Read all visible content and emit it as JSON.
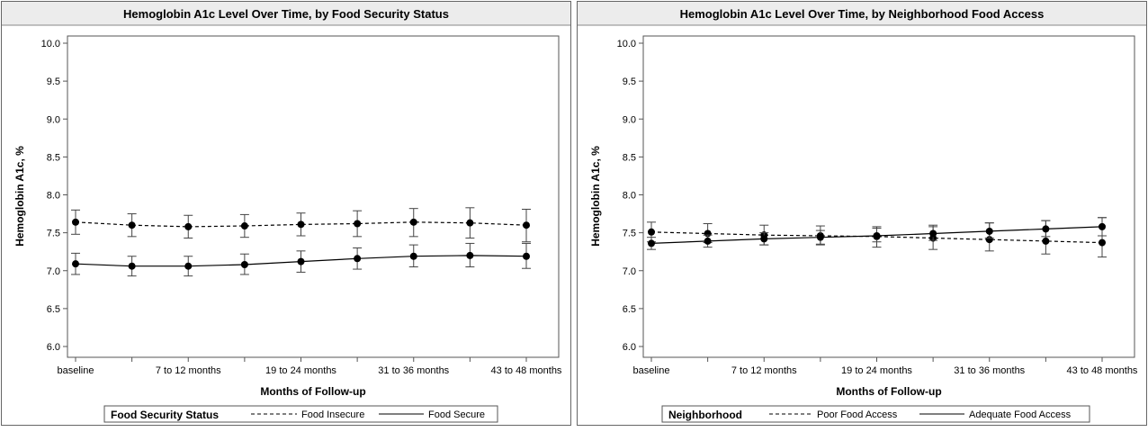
{
  "chart_data": [
    {
      "type": "line",
      "title": "Hemoglobin A1c Level Over Time, by Food Security Status",
      "xlabel": "Months of Follow-up",
      "ylabel": "Hemoglobin A1c, %",
      "ylim": [
        6.0,
        10.0
      ],
      "yticks": [
        "6.0",
        "6.5",
        "7.0",
        "7.5",
        "8.0",
        "8.5",
        "9.0",
        "9.5",
        "10.0"
      ],
      "xtick_labels": [
        "baseline",
        "7 to 12 months",
        "19 to 24 months",
        "31 to 36 months",
        "43 to 48 months"
      ],
      "legend_title": "Food Security Status",
      "series": [
        {
          "name": "Food Insecure",
          "style": "dashed",
          "values": [
            7.64,
            7.6,
            7.58,
            7.59,
            7.61,
            7.62,
            7.64,
            7.63,
            7.6
          ],
          "lower": [
            7.48,
            7.45,
            7.43,
            7.44,
            7.46,
            7.45,
            7.45,
            7.43,
            7.38
          ],
          "upper": [
            7.8,
            7.75,
            7.73,
            7.74,
            7.76,
            7.79,
            7.82,
            7.83,
            7.81
          ]
        },
        {
          "name": "Food Secure",
          "style": "solid",
          "values": [
            7.09,
            7.06,
            7.06,
            7.08,
            7.12,
            7.16,
            7.19,
            7.2,
            7.19
          ],
          "lower": [
            6.95,
            6.93,
            6.93,
            6.95,
            6.98,
            7.02,
            7.05,
            7.05,
            7.03
          ],
          "upper": [
            7.23,
            7.19,
            7.19,
            7.22,
            7.26,
            7.3,
            7.34,
            7.36,
            7.36
          ]
        }
      ]
    },
    {
      "type": "line",
      "title": "Hemoglobin A1c Level Over Time, by Neighborhood Food Access",
      "xlabel": "Months of Follow-up",
      "ylabel": "Hemoglobin A1c, %",
      "ylim": [
        6.0,
        10.0
      ],
      "yticks": [
        "6.0",
        "6.5",
        "7.0",
        "7.5",
        "8.0",
        "8.5",
        "9.0",
        "9.5",
        "10.0"
      ],
      "xtick_labels": [
        "baseline",
        "7 to 12 months",
        "19 to 24 months",
        "31 to 36 months",
        "43 to 48 months"
      ],
      "legend_title": "Neighborhood",
      "series": [
        {
          "name": "Poor Food Access",
          "style": "dashed",
          "values": [
            7.51,
            7.49,
            7.47,
            7.46,
            7.45,
            7.43,
            7.41,
            7.39,
            7.37
          ],
          "lower": [
            7.38,
            7.37,
            7.34,
            7.34,
            7.31,
            7.28,
            7.26,
            7.22,
            7.18
          ],
          "upper": [
            7.64,
            7.62,
            7.6,
            7.59,
            7.58,
            7.6,
            7.63,
            7.66,
            7.7
          ]
        },
        {
          "name": "Adequate Food Access",
          "style": "solid",
          "values": [
            7.36,
            7.39,
            7.42,
            7.44,
            7.46,
            7.49,
            7.52,
            7.55,
            7.58
          ],
          "lower": [
            7.28,
            7.31,
            7.34,
            7.35,
            7.38,
            7.4,
            7.43,
            7.45,
            7.46
          ],
          "upper": [
            7.44,
            7.47,
            7.5,
            7.53,
            7.56,
            7.58,
            7.63,
            7.66,
            7.7
          ]
        }
      ]
    }
  ]
}
